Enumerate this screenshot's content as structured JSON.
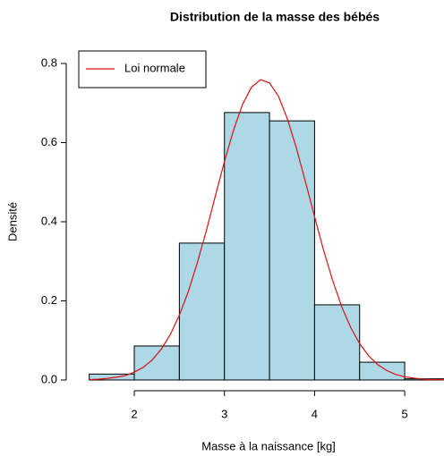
{
  "chart_data": {
    "type": "histogram",
    "title": "Distribution de la masse des bébés",
    "x_label": "Masse à la naissance [kg]",
    "y_label": "Densité",
    "bins": [
      1.5,
      2,
      2.5,
      3,
      3.5,
      4,
      4.5,
      5,
      5.5
    ],
    "values": [
      0.015,
      0.086,
      0.346,
      0.676,
      0.655,
      0.19,
      0.045,
      0.003
    ],
    "color": "#add8e6",
    "series": [
      {
        "name": "Loi normale",
        "color": "#dd1111",
        "x": [
          1.5,
          1.6,
          1.7,
          1.8,
          1.9,
          2.0,
          2.1,
          2.2,
          2.3,
          2.4,
          2.5,
          2.6,
          2.7,
          2.8,
          2.9,
          3.0,
          3.1,
          3.2,
          3.3,
          3.4,
          3.5,
          3.6,
          3.7,
          3.8,
          3.9,
          4.0,
          4.1,
          4.2,
          4.3,
          4.4,
          4.5,
          4.6,
          4.7,
          4.8,
          4.9,
          5.0,
          5.1,
          5.2,
          5.3,
          5.4,
          5.5
        ],
        "values": [
          0.001,
          0.002,
          0.004,
          0.007,
          0.011,
          0.02,
          0.032,
          0.051,
          0.078,
          0.115,
          0.164,
          0.224,
          0.297,
          0.378,
          0.466,
          0.552,
          0.631,
          0.696,
          0.74,
          0.759,
          0.751,
          0.717,
          0.659,
          0.585,
          0.5,
          0.413,
          0.328,
          0.252,
          0.186,
          0.133,
          0.092,
          0.061,
          0.039,
          0.024,
          0.014,
          0.008,
          0.005,
          0.002,
          0.001,
          0.001,
          0
        ]
      }
    ],
    "xlim": [
      1.245,
      5.436
    ],
    "ylim": [
      0,
      0.8
    ],
    "xticks": [
      2,
      3,
      4,
      5
    ],
    "yticks": [
      {
        "value": 0,
        "label": "0.0"
      },
      0.2,
      0.4,
      0.6,
      0.8
    ],
    "legend": "top-left"
  }
}
